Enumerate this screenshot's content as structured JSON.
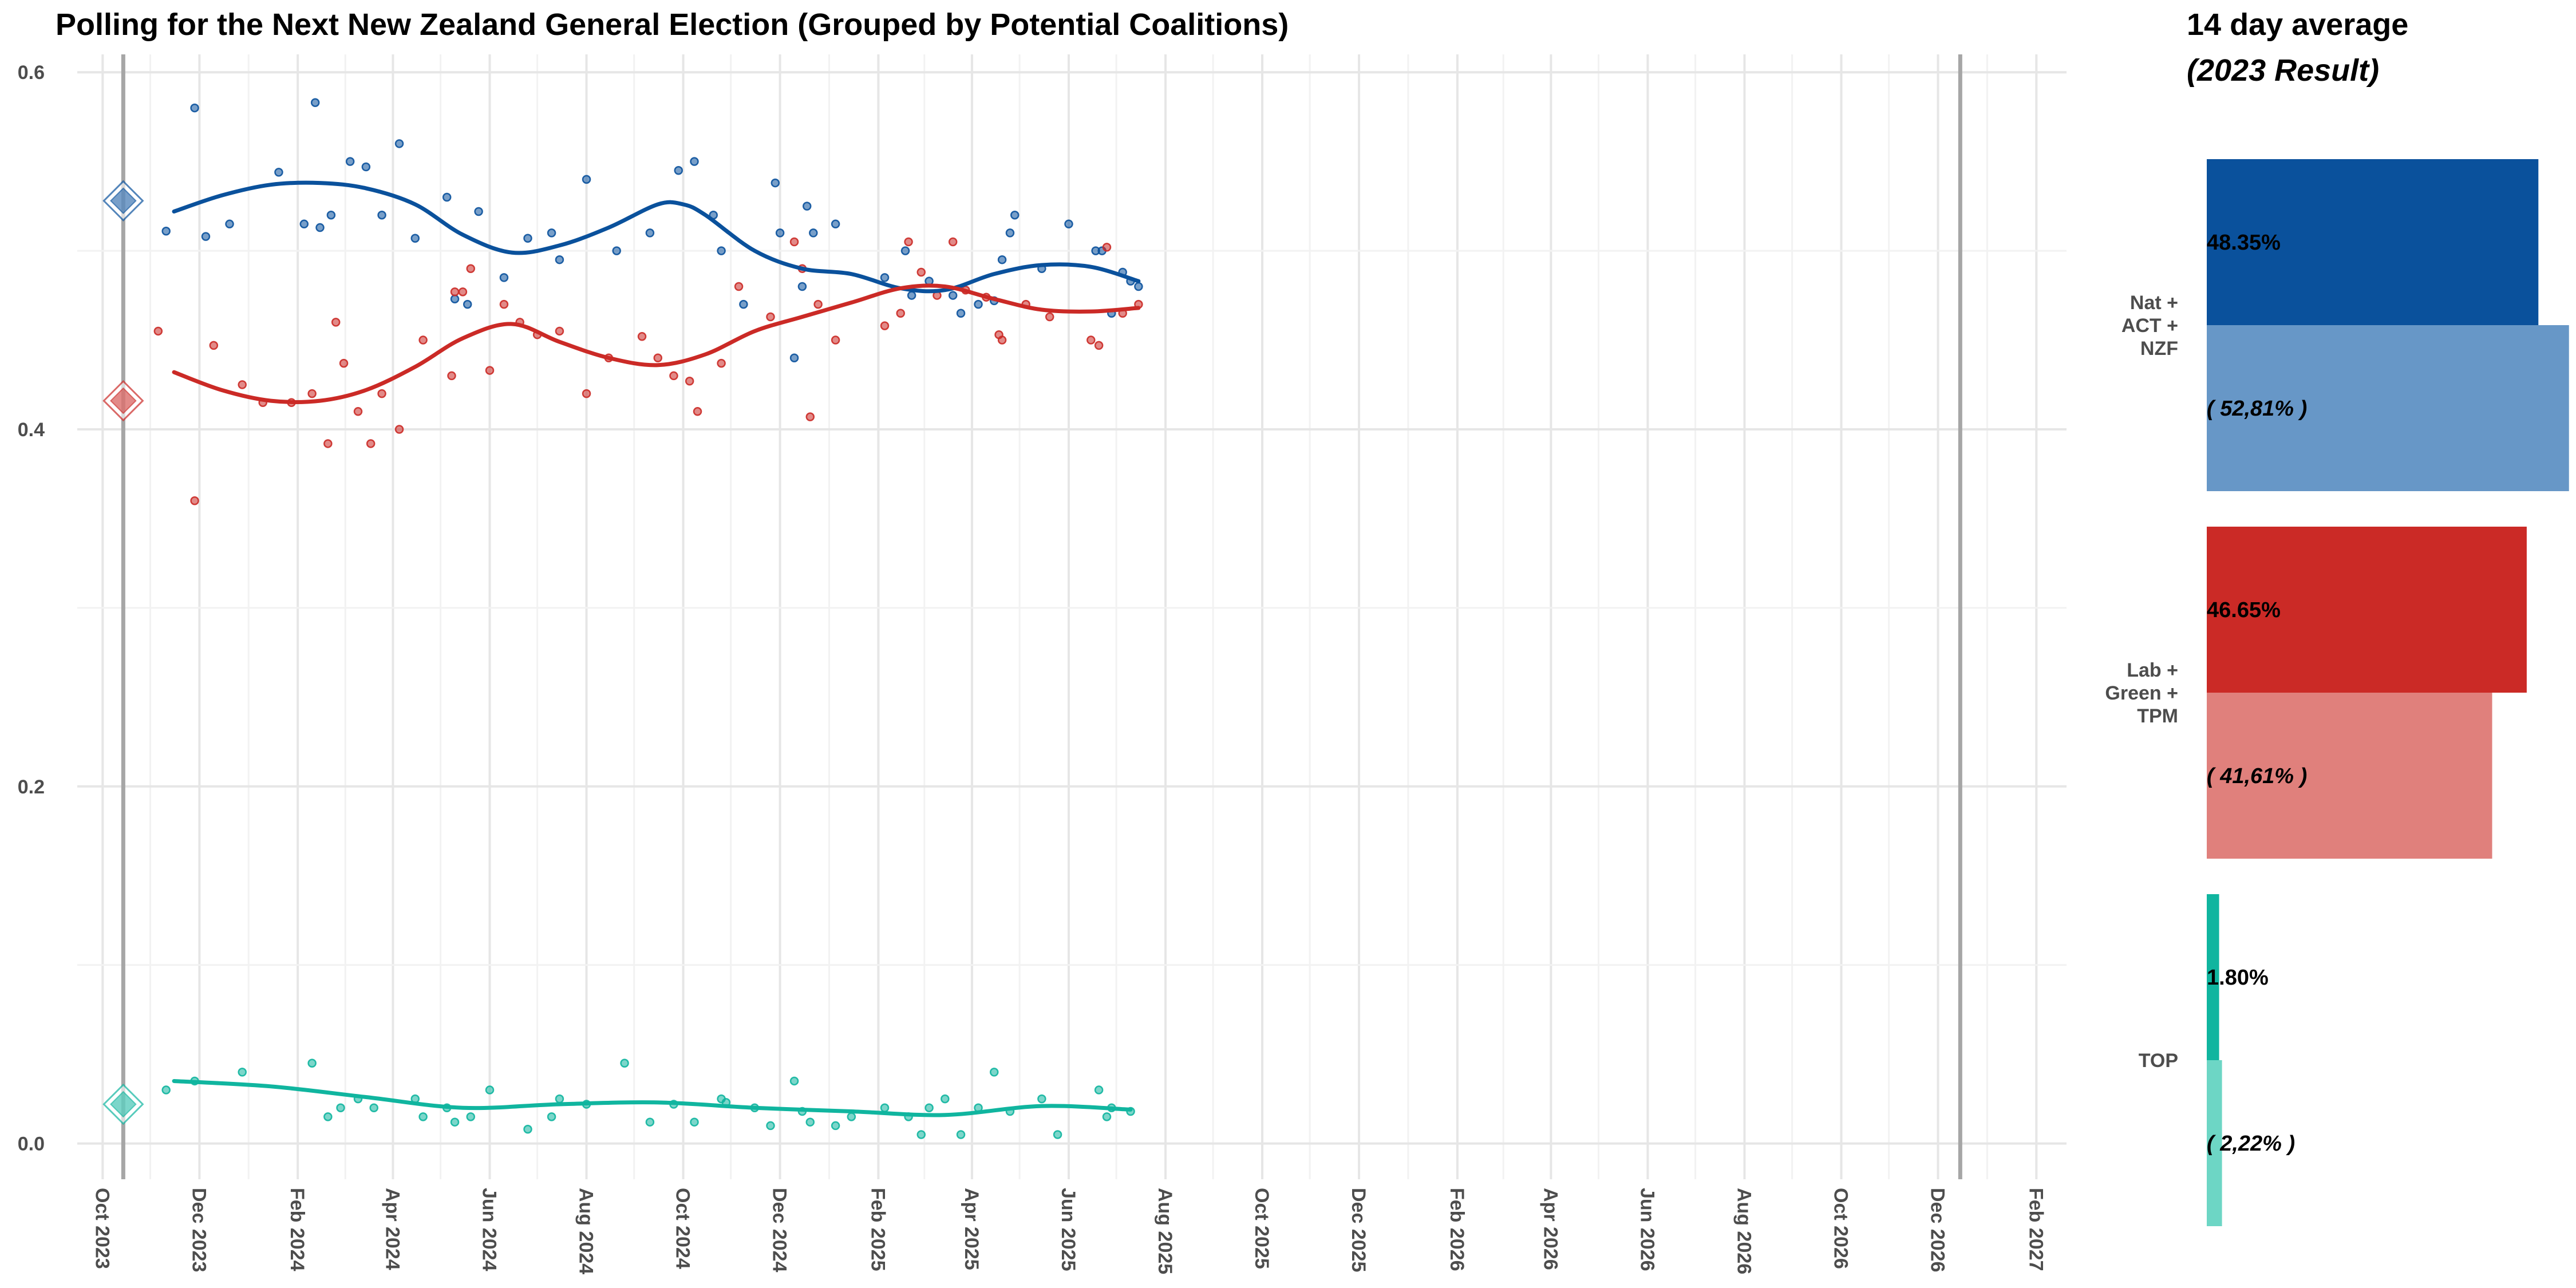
{
  "chart_data": [
    {
      "type": "scatter+line",
      "title": "Polling for the Next New Zealand General Election (Grouped by Potential Coalitions)",
      "x_ticks": [
        "Oct 2023",
        "Dec 2023",
        "Feb 2024",
        "Apr 2024",
        "Jun 2024",
        "Aug 2024",
        "Oct 2024",
        "Dec 2024",
        "Feb 2025",
        "Apr 2025",
        "Jun 2025",
        "Aug 2025",
        "Oct 2025",
        "Dec 2025",
        "Feb 2026",
        "Apr 2026",
        "Jun 2026",
        "Aug 2026",
        "Oct 2026",
        "Dec 2026",
        "Feb 2027"
      ],
      "y_ticks": [
        "0.0",
        "0.2",
        "0.4",
        "0.6"
      ],
      "ylim": [
        -0.02,
        0.61
      ],
      "xlim": [
        "2023-09-15",
        "2027-02-20"
      ],
      "grid": true,
      "vertical_markers": [
        "2023-10-14",
        "2026-12-15"
      ],
      "series": [
        {
          "color": "#0a519c",
          "result_2023": 0.528,
          "points": [
            [
              "2023-11-10",
              0.511
            ],
            [
              "2023-11-28",
              0.58
            ],
            [
              "2023-12-05",
              0.508
            ],
            [
              "2023-12-20",
              0.515
            ],
            [
              "2024-01-20",
              0.544
            ],
            [
              "2024-02-05",
              0.515
            ],
            [
              "2024-02-12",
              0.583
            ],
            [
              "2024-02-15",
              0.513
            ],
            [
              "2024-02-22",
              0.52
            ],
            [
              "2024-03-05",
              0.55
            ],
            [
              "2024-03-15",
              0.547
            ],
            [
              "2024-03-25",
              0.52
            ],
            [
              "2024-04-05",
              0.56
            ],
            [
              "2024-04-15",
              0.507
            ],
            [
              "2024-05-05",
              0.53
            ],
            [
              "2024-05-10",
              0.473
            ],
            [
              "2024-05-18",
              0.47
            ],
            [
              "2024-05-25",
              0.522
            ],
            [
              "2024-06-10",
              0.485
            ],
            [
              "2024-06-25",
              0.507
            ],
            [
              "2024-07-10",
              0.51
            ],
            [
              "2024-07-15",
              0.495
            ],
            [
              "2024-08-01",
              0.54
            ],
            [
              "2024-08-20",
              0.5
            ],
            [
              "2024-09-10",
              0.51
            ],
            [
              "2024-09-28",
              0.545
            ],
            [
              "2024-10-08",
              0.55
            ],
            [
              "2024-10-20",
              0.52
            ],
            [
              "2024-10-25",
              0.5
            ],
            [
              "2024-11-08",
              0.47
            ],
            [
              "2024-11-28",
              0.538
            ],
            [
              "2024-12-01",
              0.51
            ],
            [
              "2024-12-10",
              0.44
            ],
            [
              "2024-12-15",
              0.48
            ],
            [
              "2024-12-18",
              0.525
            ],
            [
              "2024-12-22",
              0.51
            ],
            [
              "2025-01-05",
              0.515
            ],
            [
              "2025-02-05",
              0.485
            ],
            [
              "2025-02-18",
              0.5
            ],
            [
              "2025-02-22",
              0.475
            ],
            [
              "2025-03-05",
              0.483
            ],
            [
              "2025-03-20",
              0.475
            ],
            [
              "2025-03-25",
              0.465
            ],
            [
              "2025-04-05",
              0.47
            ],
            [
              "2025-04-15",
              0.472
            ],
            [
              "2025-04-20",
              0.495
            ],
            [
              "2025-04-25",
              0.51
            ],
            [
              "2025-04-28",
              0.52
            ],
            [
              "2025-05-15",
              0.49
            ],
            [
              "2025-06-01",
              0.515
            ],
            [
              "2025-06-18",
              0.5
            ],
            [
              "2025-06-22",
              0.5
            ],
            [
              "2025-06-28",
              0.465
            ],
            [
              "2025-07-05",
              0.488
            ],
            [
              "2025-07-10",
              0.483
            ],
            [
              "2025-07-15",
              0.48
            ]
          ],
          "trend": [
            [
              "2023-11-15",
              0.522
            ],
            [
              "2023-12-15",
              0.531
            ],
            [
              "2024-01-15",
              0.537
            ],
            [
              "2024-02-15",
              0.538
            ],
            [
              "2024-03-15",
              0.535
            ],
            [
              "2024-04-15",
              0.526
            ],
            [
              "2024-05-15",
              0.509
            ],
            [
              "2024-06-15",
              0.499
            ],
            [
              "2024-07-15",
              0.503
            ],
            [
              "2024-08-15",
              0.513
            ],
            [
              "2024-09-15",
              0.526
            ],
            [
              "2024-10-01",
              0.526
            ],
            [
              "2024-10-15",
              0.52
            ],
            [
              "2024-11-15",
              0.5
            ],
            [
              "2024-12-15",
              0.49
            ],
            [
              "2025-01-15",
              0.487
            ],
            [
              "2025-02-15",
              0.479
            ],
            [
              "2025-03-15",
              0.478
            ],
            [
              "2025-04-15",
              0.487
            ],
            [
              "2025-05-15",
              0.492
            ],
            [
              "2025-06-15",
              0.491
            ],
            [
              "2025-07-15",
              0.483
            ]
          ]
        },
        {
          "color": "#cb2a26",
          "result_2023": 0.416,
          "points": [
            [
              "2023-11-05",
              0.455
            ],
            [
              "2023-11-28",
              0.36
            ],
            [
              "2023-12-10",
              0.447
            ],
            [
              "2023-12-28",
              0.425
            ],
            [
              "2024-01-10",
              0.415
            ],
            [
              "2024-01-28",
              0.415
            ],
            [
              "2024-02-10",
              0.42
            ],
            [
              "2024-02-20",
              0.392
            ],
            [
              "2024-02-25",
              0.46
            ],
            [
              "2024-03-01",
              0.437
            ],
            [
              "2024-03-10",
              0.41
            ],
            [
              "2024-03-18",
              0.392
            ],
            [
              "2024-03-25",
              0.42
            ],
            [
              "2024-04-05",
              0.4
            ],
            [
              "2024-04-20",
              0.45
            ],
            [
              "2024-05-08",
              0.43
            ],
            [
              "2024-05-10",
              0.477
            ],
            [
              "2024-05-15",
              0.477
            ],
            [
              "2024-05-20",
              0.49
            ],
            [
              "2024-06-01",
              0.433
            ],
            [
              "2024-06-10",
              0.47
            ],
            [
              "2024-06-20",
              0.46
            ],
            [
              "2024-07-01",
              0.453
            ],
            [
              "2024-07-15",
              0.455
            ],
            [
              "2024-08-01",
              0.42
            ],
            [
              "2024-08-15",
              0.44
            ],
            [
              "2024-09-05",
              0.452
            ],
            [
              "2024-09-15",
              0.44
            ],
            [
              "2024-09-25",
              0.43
            ],
            [
              "2024-10-05",
              0.427
            ],
            [
              "2024-10-10",
              0.41
            ],
            [
              "2024-10-25",
              0.437
            ],
            [
              "2024-11-05",
              0.48
            ],
            [
              "2024-11-25",
              0.463
            ],
            [
              "2024-12-10",
              0.505
            ],
            [
              "2024-12-15",
              0.49
            ],
            [
              "2024-12-20",
              0.407
            ],
            [
              "2024-12-25",
              0.47
            ],
            [
              "2025-01-05",
              0.45
            ],
            [
              "2025-02-05",
              0.458
            ],
            [
              "2025-02-15",
              0.465
            ],
            [
              "2025-02-20",
              0.505
            ],
            [
              "2025-02-28",
              0.488
            ],
            [
              "2025-03-10",
              0.475
            ],
            [
              "2025-03-20",
              0.505
            ],
            [
              "2025-03-28",
              0.478
            ],
            [
              "2025-04-10",
              0.474
            ],
            [
              "2025-04-18",
              0.453
            ],
            [
              "2025-04-20",
              0.45
            ],
            [
              "2025-05-05",
              0.47
            ],
            [
              "2025-05-20",
              0.463
            ],
            [
              "2025-06-15",
              0.45
            ],
            [
              "2025-06-20",
              0.447
            ],
            [
              "2025-06-25",
              0.502
            ],
            [
              "2025-07-05",
              0.465
            ],
            [
              "2025-07-15",
              0.47
            ]
          ],
          "trend": [
            [
              "2023-11-15",
              0.432
            ],
            [
              "2023-12-15",
              0.422
            ],
            [
              "2024-01-15",
              0.416
            ],
            [
              "2024-02-15",
              0.416
            ],
            [
              "2024-03-15",
              0.422
            ],
            [
              "2024-04-15",
              0.435
            ],
            [
              "2024-05-15",
              0.451
            ],
            [
              "2024-06-15",
              0.459
            ],
            [
              "2024-07-15",
              0.449
            ],
            [
              "2024-08-15",
              0.44
            ],
            [
              "2024-09-15",
              0.436
            ],
            [
              "2024-10-15",
              0.442
            ],
            [
              "2024-11-15",
              0.455
            ],
            [
              "2024-12-15",
              0.463
            ],
            [
              "2025-01-15",
              0.471
            ],
            [
              "2025-02-15",
              0.479
            ],
            [
              "2025-03-15",
              0.48
            ],
            [
              "2025-04-15",
              0.473
            ],
            [
              "2025-05-15",
              0.467
            ],
            [
              "2025-06-15",
              0.466
            ],
            [
              "2025-07-15",
              0.468
            ]
          ]
        },
        {
          "color": "#10b59f",
          "result_2023": 0.022,
          "points": [
            [
              "2023-11-10",
              0.03
            ],
            [
              "2023-11-28",
              0.035
            ],
            [
              "2023-12-28",
              0.04
            ],
            [
              "2024-02-10",
              0.045
            ],
            [
              "2024-02-20",
              0.015
            ],
            [
              "2024-02-28",
              0.02
            ],
            [
              "2024-03-10",
              0.025
            ],
            [
              "2024-03-20",
              0.02
            ],
            [
              "2024-04-15",
              0.025
            ],
            [
              "2024-04-20",
              0.015
            ],
            [
              "2024-05-05",
              0.02
            ],
            [
              "2024-05-10",
              0.012
            ],
            [
              "2024-05-20",
              0.015
            ],
            [
              "2024-06-01",
              0.03
            ],
            [
              "2024-06-25",
              0.008
            ],
            [
              "2024-07-10",
              0.015
            ],
            [
              "2024-07-15",
              0.025
            ],
            [
              "2024-08-01",
              0.022
            ],
            [
              "2024-08-25",
              0.045
            ],
            [
              "2024-09-10",
              0.012
            ],
            [
              "2024-09-25",
              0.022
            ],
            [
              "2024-10-08",
              0.012
            ],
            [
              "2024-10-25",
              0.025
            ],
            [
              "2024-10-28",
              0.023
            ],
            [
              "2024-11-15",
              0.02
            ],
            [
              "2024-11-25",
              0.01
            ],
            [
              "2024-12-10",
              0.035
            ],
            [
              "2024-12-15",
              0.018
            ],
            [
              "2024-12-20",
              0.012
            ],
            [
              "2025-01-05",
              0.01
            ],
            [
              "2025-01-15",
              0.015
            ],
            [
              "2025-02-05",
              0.02
            ],
            [
              "2025-02-20",
              0.015
            ],
            [
              "2025-02-28",
              0.005
            ],
            [
              "2025-03-05",
              0.02
            ],
            [
              "2025-03-15",
              0.025
            ],
            [
              "2025-03-25",
              0.005
            ],
            [
              "2025-04-05",
              0.02
            ],
            [
              "2025-04-15",
              0.04
            ],
            [
              "2025-04-25",
              0.018
            ],
            [
              "2025-05-15",
              0.025
            ],
            [
              "2025-05-25",
              0.005
            ],
            [
              "2025-06-20",
              0.03
            ],
            [
              "2025-06-25",
              0.015
            ],
            [
              "2025-06-28",
              0.02
            ],
            [
              "2025-07-10",
              0.018
            ]
          ],
          "trend": [
            [
              "2023-11-15",
              0.035
            ],
            [
              "2024-01-15",
              0.032
            ],
            [
              "2024-03-15",
              0.026
            ],
            [
              "2024-05-15",
              0.02
            ],
            [
              "2024-07-15",
              0.022
            ],
            [
              "2024-09-15",
              0.023
            ],
            [
              "2024-11-15",
              0.02
            ],
            [
              "2025-01-15",
              0.018
            ],
            [
              "2025-03-15",
              0.016
            ],
            [
              "2025-05-15",
              0.021
            ],
            [
              "2025-07-10",
              0.019
            ]
          ]
        }
      ]
    },
    {
      "type": "bar",
      "title": "14 day average",
      "subtitle": "(2023 Result)",
      "xlim": [
        0,
        0.53
      ],
      "categories": [
        "Nat +\nACT +\nNZF",
        "Lab +\nGreen +\nTPM",
        "TOP"
      ],
      "series": [
        {
          "values": [
            0.4835,
            0.4665,
            0.018
          ],
          "labels": [
            "48.35%",
            "46.65%",
            "1.80%"
          ],
          "colors": [
            "#0a519c",
            "#cb2a26",
            "#10b59f"
          ]
        },
        {
          "values": [
            0.5281,
            0.4161,
            0.0222
          ],
          "labels": [
            "( 52,81% )",
            "( 41,61% )",
            "( 2,22% )"
          ],
          "colors": [
            "#6797c7",
            "#e0807c",
            "#6dd6c5"
          ]
        }
      ]
    }
  ]
}
